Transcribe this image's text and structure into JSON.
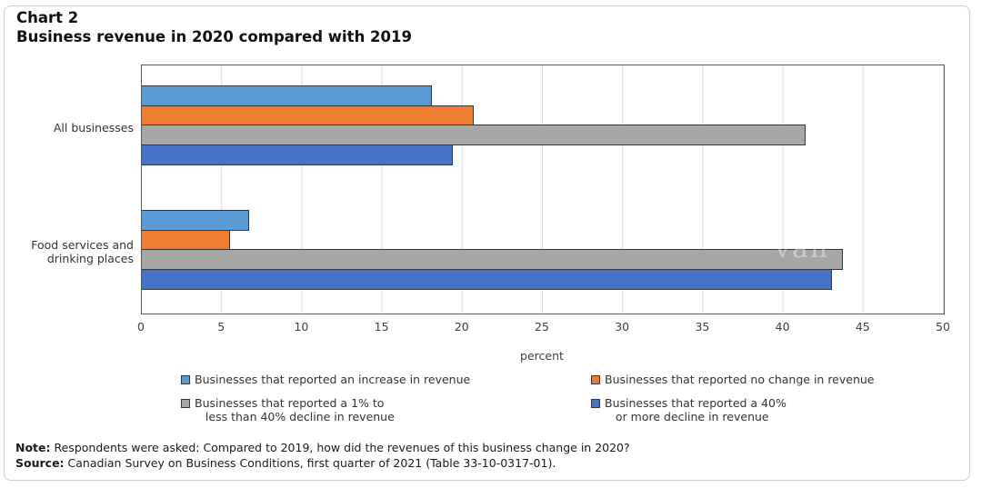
{
  "page": {
    "watermark": "van"
  },
  "chart_data": {
    "type": "bar",
    "orientation": "horizontal",
    "title": "Chart 2",
    "subtitle": "Business revenue in 2020 compared with 2019",
    "categories": [
      "All businesses",
      "Food services and\ndrinking places"
    ],
    "series": [
      {
        "name": "Businesses that reported an increase in revenue",
        "color": "#5B9BD5",
        "values": [
          18.1,
          6.7
        ]
      },
      {
        "name": "Businesses that reported no change in revenue",
        "color": "#ED7D31",
        "values": [
          20.7,
          5.5
        ]
      },
      {
        "name": "Businesses that reported a 1% to\n   less than 40% decline in revenue",
        "color": "#A6A6A6",
        "values": [
          41.4,
          43.7
        ]
      },
      {
        "name": "Businesses that reported a 40%\n   or more decline in revenue",
        "color": "#4472C4",
        "values": [
          19.4,
          43.0
        ]
      }
    ],
    "xlabel": "percent",
    "xlim": [
      0,
      50
    ],
    "x_ticks": [
      0,
      5,
      10,
      15,
      20,
      25,
      30,
      35,
      40,
      45,
      50
    ],
    "grid": true,
    "legend_position": "bottom"
  },
  "notes": {
    "note_label": "Note:",
    "note_text": " Respondents were asked: Compared to 2019, how did the revenues of this business change in 2020?",
    "source_label": "Source:",
    "source_text": " Canadian Survey on Business Conditions, first quarter of 2021 (Table 33-10-0317-01)."
  }
}
